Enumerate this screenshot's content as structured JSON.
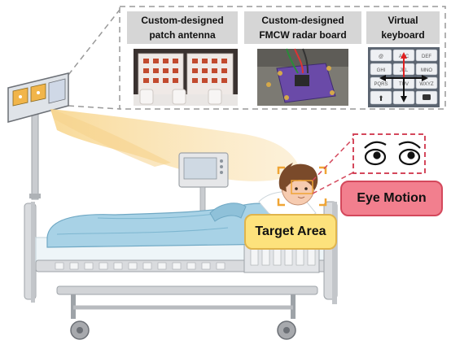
{
  "panels": {
    "antenna": {
      "line1": "Custom-designed",
      "line2": "patch antenna"
    },
    "radar": {
      "line1": "Custom-designed",
      "line2": "FMCW radar board"
    },
    "keyboard": {
      "line1": "Virtual",
      "line2": "keyboard"
    }
  },
  "keyboard_keys": [
    "@",
    "ABC",
    "DEF",
    "GHI",
    "JKL",
    "MNO",
    "PQRS",
    "TUV",
    "WXYZ"
  ],
  "labels": {
    "target_area": "Target Area",
    "eye_motion": "Eye Motion"
  },
  "colors": {
    "panel_header": "#d6d6d6",
    "target_area_fill": "#fde27c",
    "eye_motion_fill": "#f27f8e",
    "eye_motion_border": "#d4485c",
    "beam": "#f8dca0",
    "radar_board": "#6a4aa8",
    "arrow_red": "#e02020"
  }
}
